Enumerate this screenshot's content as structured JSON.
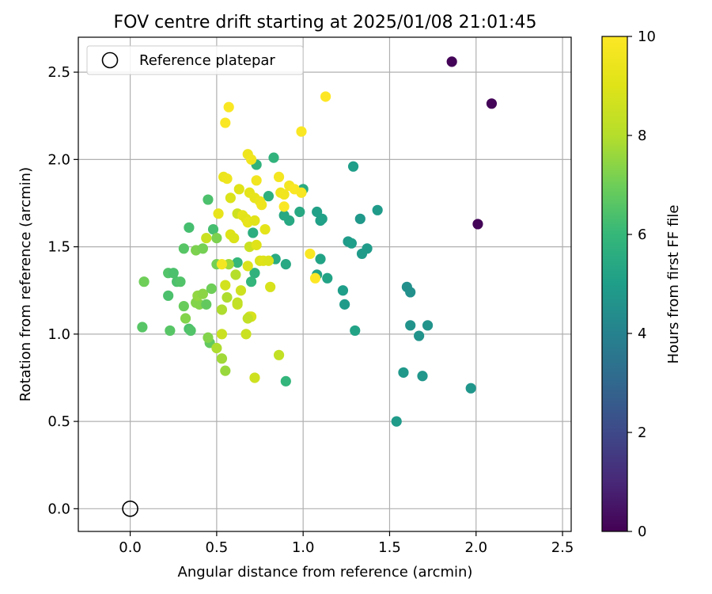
{
  "chart_data": {
    "type": "scatter",
    "title": "FOV centre drift starting at 2025/01/08 21:01:45",
    "xlabel": "Angular distance from reference (arcmin)",
    "ylabel": "Rotation from reference (arcmin)",
    "xlim": [
      -0.3,
      2.55
    ],
    "ylim": [
      -0.13,
      2.7
    ],
    "grid": true,
    "xticks": [
      "0.0",
      "0.5",
      "1.0",
      "1.5",
      "2.0",
      "2.5"
    ],
    "yticks": [
      "0.0",
      "0.5",
      "1.0",
      "1.5",
      "2.0",
      "2.5"
    ],
    "legend": {
      "placement": "top-left",
      "entries": [
        {
          "label": "Reference platepar",
          "x": 0.0,
          "y": 0.0
        }
      ]
    },
    "colorbar": {
      "label": "Hours from first FF file",
      "range": [
        0,
        10
      ],
      "ticks": [
        "0",
        "2",
        "4",
        "6",
        "8",
        "10"
      ],
      "colormap": "viridis"
    },
    "points": [
      [
        1.86,
        2.56,
        0.1
      ],
      [
        2.09,
        2.32,
        0.1
      ],
      [
        2.01,
        1.63,
        0.1
      ],
      [
        1.97,
        0.69,
        4.7
      ],
      [
        1.69,
        0.76,
        4.7
      ],
      [
        1.58,
        0.78,
        4.8
      ],
      [
        1.54,
        0.5,
        4.9
      ],
      [
        1.72,
        1.05,
        4.6
      ],
      [
        1.67,
        0.99,
        4.6
      ],
      [
        1.62,
        1.05,
        4.6
      ],
      [
        1.6,
        1.27,
        4.5
      ],
      [
        1.62,
        1.24,
        4.5
      ],
      [
        1.43,
        1.71,
        4.9
      ],
      [
        1.37,
        1.49,
        4.9
      ],
      [
        1.34,
        1.46,
        4.9
      ],
      [
        1.33,
        1.66,
        4.8
      ],
      [
        1.29,
        1.96,
        5.0
      ],
      [
        1.26,
        1.53,
        4.9
      ],
      [
        1.28,
        1.52,
        5.0
      ],
      [
        1.23,
        1.25,
        5.0
      ],
      [
        1.24,
        1.17,
        4.9
      ],
      [
        1.3,
        1.02,
        5.2
      ],
      [
        1.1,
        1.65,
        5.1
      ],
      [
        1.11,
        1.66,
        5.1
      ],
      [
        1.08,
        1.7,
        5.1
      ],
      [
        1.1,
        1.43,
        5.2
      ],
      [
        1.08,
        1.34,
        5.2
      ],
      [
        1.14,
        1.32,
        5.2
      ],
      [
        1.0,
        1.83,
        5.5
      ],
      [
        0.98,
        1.7,
        5.4
      ],
      [
        0.92,
        1.65,
        5.4
      ],
      [
        0.89,
        1.68,
        5.4
      ],
      [
        0.84,
        1.43,
        5.5
      ],
      [
        0.9,
        1.4,
        5.4
      ],
      [
        0.83,
        2.01,
        5.8
      ],
      [
        0.73,
        1.97,
        5.8
      ],
      [
        0.8,
        1.79,
        5.7
      ],
      [
        0.71,
        1.58,
        5.6
      ],
      [
        0.72,
        1.35,
        5.8
      ],
      [
        0.7,
        1.3,
        5.9
      ],
      [
        0.9,
        0.73,
        5.9
      ],
      [
        0.62,
        1.41,
        6.0
      ],
      [
        0.48,
        1.6,
        6.3
      ],
      [
        0.45,
        1.77,
        6.4
      ],
      [
        0.34,
        1.61,
        6.3
      ],
      [
        0.31,
        1.49,
        6.6
      ],
      [
        0.27,
        1.3,
        6.4
      ],
      [
        0.29,
        1.3,
        6.5
      ],
      [
        0.22,
        1.35,
        6.5
      ],
      [
        0.25,
        1.35,
        6.4
      ],
      [
        0.08,
        1.3,
        7.0
      ],
      [
        0.07,
        1.04,
        6.6
      ],
      [
        0.22,
        1.22,
        6.4
      ],
      [
        0.23,
        1.02,
        6.6
      ],
      [
        0.34,
        1.03,
        6.4
      ],
      [
        0.35,
        1.02,
        6.5
      ],
      [
        0.31,
        1.16,
        6.9
      ],
      [
        0.32,
        1.09,
        7.3
      ],
      [
        0.4,
        1.17,
        7.3
      ],
      [
        0.38,
        1.18,
        7.3
      ],
      [
        0.39,
        1.22,
        7.5
      ],
      [
        0.42,
        1.23,
        7.4
      ],
      [
        0.44,
        1.17,
        6.8
      ],
      [
        0.47,
        1.26,
        7.0
      ],
      [
        0.46,
        0.95,
        6.8
      ],
      [
        0.45,
        0.98,
        7.3
      ],
      [
        0.38,
        1.48,
        7.2
      ],
      [
        0.42,
        1.49,
        7.1
      ],
      [
        0.5,
        1.4,
        7.1
      ],
      [
        0.5,
        1.55,
        7.2
      ],
      [
        0.44,
        1.55,
        8.5
      ],
      [
        0.57,
        1.4,
        7.7
      ],
      [
        0.61,
        1.34,
        8.0
      ],
      [
        0.62,
        1.17,
        8.5
      ],
      [
        0.62,
        1.18,
        8.3
      ],
      [
        0.56,
        1.21,
        7.9
      ],
      [
        0.55,
        1.28,
        8.7
      ],
      [
        0.53,
        1.0,
        8.5
      ],
      [
        0.53,
        1.14,
        7.9
      ],
      [
        0.5,
        0.92,
        7.9
      ],
      [
        0.53,
        0.86,
        7.7
      ],
      [
        0.55,
        0.79,
        7.6
      ],
      [
        0.64,
        1.25,
        8.6
      ],
      [
        0.69,
        1.1,
        8.7
      ],
      [
        0.7,
        1.1,
        8.8
      ],
      [
        0.68,
        1.09,
        8.3
      ],
      [
        0.67,
        1.0,
        8.5
      ],
      [
        0.72,
        0.75,
        8.6
      ],
      [
        0.86,
        0.88,
        8.3
      ],
      [
        0.68,
        1.39,
        8.9
      ],
      [
        0.75,
        1.42,
        8.8
      ],
      [
        0.77,
        1.42,
        9.0
      ],
      [
        0.8,
        1.42,
        8.9
      ],
      [
        0.81,
        1.27,
        8.8
      ],
      [
        0.69,
        1.5,
        8.5
      ],
      [
        0.73,
        1.51,
        9.0
      ],
      [
        0.58,
        1.57,
        9.0
      ],
      [
        0.6,
        1.55,
        8.9
      ],
      [
        0.62,
        1.69,
        8.6
      ],
      [
        0.65,
        1.68,
        9.2
      ],
      [
        0.67,
        1.66,
        9.1
      ],
      [
        0.68,
        1.64,
        9.3
      ],
      [
        0.72,
        1.65,
        9.1
      ],
      [
        0.78,
        1.6,
        9.2
      ],
      [
        0.58,
        1.78,
        8.9
      ],
      [
        0.63,
        1.83,
        9.0
      ],
      [
        0.69,
        1.81,
        9.2
      ],
      [
        0.72,
        1.78,
        9.3
      ],
      [
        0.75,
        1.76,
        9.4
      ],
      [
        0.76,
        1.74,
        9.5
      ],
      [
        0.73,
        1.88,
        9.6
      ],
      [
        0.54,
        1.9,
        9.4
      ],
      [
        0.56,
        1.89,
        9.5
      ],
      [
        0.51,
        1.69,
        9.3
      ],
      [
        0.53,
        1.4,
        9.7
      ],
      [
        0.68,
        2.03,
        9.5
      ],
      [
        0.7,
        2.0,
        9.6
      ],
      [
        0.86,
        1.9,
        9.7
      ],
      [
        0.87,
        1.81,
        9.5
      ],
      [
        0.89,
        1.8,
        9.6
      ],
      [
        0.89,
        1.73,
        9.9
      ],
      [
        0.92,
        1.85,
        9.7
      ],
      [
        0.95,
        1.83,
        9.9
      ],
      [
        0.99,
        1.81,
        9.8
      ],
      [
        1.04,
        1.46,
        9.9
      ],
      [
        1.07,
        1.32,
        10.0
      ],
      [
        0.55,
        2.21,
        9.9
      ],
      [
        0.57,
        2.3,
        9.9
      ],
      [
        0.99,
        2.16,
        9.9
      ],
      [
        1.13,
        2.36,
        10.0
      ]
    ]
  }
}
